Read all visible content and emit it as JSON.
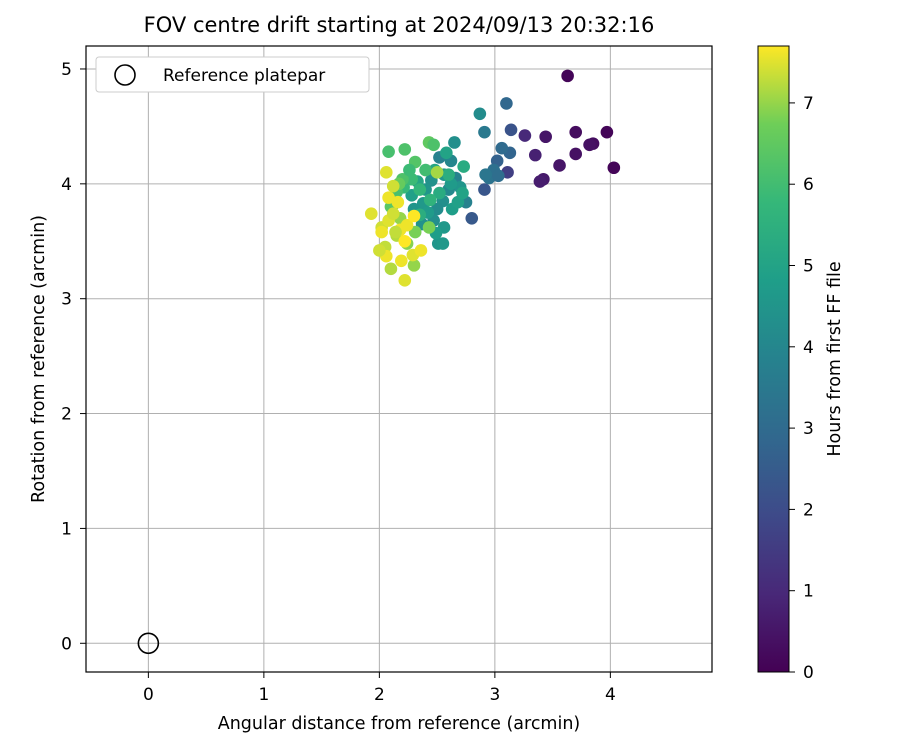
{
  "chart_data": {
    "type": "scatter",
    "title": "FOV centre drift starting at 2024/09/13 20:32:16",
    "xlabel": "Angular distance from reference (arcmin)",
    "ylabel": "Rotation from reference (arcmin)",
    "xlim": [
      -0.54,
      4.88
    ],
    "ylim": [
      -0.25,
      5.2
    ],
    "xticks": [
      0,
      1,
      2,
      3,
      4
    ],
    "yticks": [
      0,
      1,
      2,
      3,
      4,
      5
    ],
    "grid": true,
    "legend": {
      "placement": "upper-left",
      "entries": [
        {
          "label": "Reference platepar",
          "marker": "open-circle"
        }
      ]
    },
    "reference_point": {
      "x": 0,
      "y": 0
    },
    "colorbar": {
      "label": "Hours from first FF file",
      "colormap": "viridis",
      "range": [
        0,
        7.7
      ],
      "ticks": [
        0,
        1,
        2,
        3,
        4,
        5,
        6,
        7
      ]
    },
    "points": [
      {
        "x": 3.63,
        "y": 4.94,
        "c": 0.1
      },
      {
        "x": 3.97,
        "y": 4.45,
        "c": 0.1
      },
      {
        "x": 4.03,
        "y": 4.14,
        "c": 0.1
      },
      {
        "x": 3.7,
        "y": 4.45,
        "c": 0.3
      },
      {
        "x": 3.85,
        "y": 4.35,
        "c": 0.3
      },
      {
        "x": 3.82,
        "y": 4.34,
        "c": 0.4
      },
      {
        "x": 3.7,
        "y": 4.26,
        "c": 0.4
      },
      {
        "x": 3.56,
        "y": 4.16,
        "c": 0.5
      },
      {
        "x": 3.44,
        "y": 4.41,
        "c": 0.5
      },
      {
        "x": 3.42,
        "y": 4.04,
        "c": 0.6
      },
      {
        "x": 3.39,
        "y": 4.02,
        "c": 0.7
      },
      {
        "x": 3.35,
        "y": 4.25,
        "c": 0.8
      },
      {
        "x": 3.26,
        "y": 4.42,
        "c": 1.0
      },
      {
        "x": 3.11,
        "y": 4.1,
        "c": 1.6
      },
      {
        "x": 3.14,
        "y": 4.47,
        "c": 2.2
      },
      {
        "x": 2.91,
        "y": 3.95,
        "c": 2.3
      },
      {
        "x": 2.8,
        "y": 3.7,
        "c": 2.4
      },
      {
        "x": 3.1,
        "y": 4.7,
        "c": 2.9
      },
      {
        "x": 3.02,
        "y": 4.2,
        "c": 2.7
      },
      {
        "x": 3.13,
        "y": 4.27,
        "c": 2.8
      },
      {
        "x": 3.06,
        "y": 4.31,
        "c": 3.0
      },
      {
        "x": 2.99,
        "y": 4.12,
        "c": 3.2
      },
      {
        "x": 2.91,
        "y": 4.45,
        "c": 3.5
      },
      {
        "x": 2.95,
        "y": 4.05,
        "c": 3.3
      },
      {
        "x": 3.03,
        "y": 4.07,
        "c": 3.1
      },
      {
        "x": 2.92,
        "y": 4.08,
        "c": 3.4
      },
      {
        "x": 2.75,
        "y": 3.84,
        "c": 3.8
      },
      {
        "x": 2.87,
        "y": 4.61,
        "c": 4.2
      },
      {
        "x": 2.65,
        "y": 4.36,
        "c": 4.3
      },
      {
        "x": 2.52,
        "y": 4.23,
        "c": 3.8
      },
      {
        "x": 2.62,
        "y": 4.2,
        "c": 4.0
      },
      {
        "x": 2.66,
        "y": 4.05,
        "c": 3.9
      },
      {
        "x": 2.7,
        "y": 3.97,
        "c": 4.5
      },
      {
        "x": 2.6,
        "y": 3.95,
        "c": 4.1
      },
      {
        "x": 2.55,
        "y": 3.85,
        "c": 4.3
      },
      {
        "x": 2.5,
        "y": 3.78,
        "c": 4.2
      },
      {
        "x": 2.47,
        "y": 3.68,
        "c": 4.3
      },
      {
        "x": 2.56,
        "y": 3.62,
        "c": 4.6
      },
      {
        "x": 2.51,
        "y": 3.48,
        "c": 4.5
      },
      {
        "x": 2.55,
        "y": 3.48,
        "c": 4.6
      },
      {
        "x": 2.49,
        "y": 3.57,
        "c": 4.8
      },
      {
        "x": 2.63,
        "y": 3.78,
        "c": 4.8
      },
      {
        "x": 2.68,
        "y": 3.84,
        "c": 4.9
      },
      {
        "x": 2.72,
        "y": 3.92,
        "c": 5.0
      },
      {
        "x": 2.62,
        "y": 4.0,
        "c": 4.7
      },
      {
        "x": 2.56,
        "y": 4.08,
        "c": 4.6
      },
      {
        "x": 2.45,
        "y": 4.03,
        "c": 4.4
      },
      {
        "x": 2.4,
        "y": 3.95,
        "c": 4.5
      },
      {
        "x": 2.38,
        "y": 3.83,
        "c": 4.6
      },
      {
        "x": 2.42,
        "y": 3.75,
        "c": 4.7
      },
      {
        "x": 2.37,
        "y": 3.65,
        "c": 4.4
      },
      {
        "x": 2.3,
        "y": 3.78,
        "c": 4.5
      },
      {
        "x": 2.28,
        "y": 3.9,
        "c": 4.9
      },
      {
        "x": 2.33,
        "y": 4.02,
        "c": 5.1
      },
      {
        "x": 2.48,
        "y": 4.12,
        "c": 5.1
      },
      {
        "x": 2.58,
        "y": 4.27,
        "c": 5.0
      },
      {
        "x": 2.73,
        "y": 4.15,
        "c": 5.3
      },
      {
        "x": 2.6,
        "y": 4.08,
        "c": 5.4
      },
      {
        "x": 2.52,
        "y": 3.92,
        "c": 5.3
      },
      {
        "x": 2.44,
        "y": 3.86,
        "c": 5.6
      },
      {
        "x": 2.35,
        "y": 3.95,
        "c": 5.7
      },
      {
        "x": 2.21,
        "y": 3.97,
        "c": 5.8
      },
      {
        "x": 2.28,
        "y": 4.04,
        "c": 5.9
      },
      {
        "x": 2.2,
        "y": 4.04,
        "c": 6.2
      },
      {
        "x": 2.15,
        "y": 3.93,
        "c": 6.1
      },
      {
        "x": 2.12,
        "y": 3.82,
        "c": 6.0
      },
      {
        "x": 2.08,
        "y": 4.28,
        "c": 6.1
      },
      {
        "x": 2.22,
        "y": 4.3,
        "c": 6.2
      },
      {
        "x": 2.31,
        "y": 4.19,
        "c": 6.3
      },
      {
        "x": 2.43,
        "y": 4.36,
        "c": 6.5
      },
      {
        "x": 2.47,
        "y": 4.34,
        "c": 6.2
      },
      {
        "x": 2.4,
        "y": 4.12,
        "c": 6.0
      },
      {
        "x": 2.26,
        "y": 4.12,
        "c": 5.9
      },
      {
        "x": 2.17,
        "y": 4.0,
        "c": 6.6
      },
      {
        "x": 2.1,
        "y": 3.8,
        "c": 6.4
      },
      {
        "x": 2.35,
        "y": 3.73,
        "c": 5.4
      },
      {
        "x": 2.43,
        "y": 3.62,
        "c": 6.8
      },
      {
        "x": 2.5,
        "y": 4.1,
        "c": 7.1
      },
      {
        "x": 2.3,
        "y": 3.29,
        "c": 7.0
      },
      {
        "x": 2.31,
        "y": 3.58,
        "c": 6.8
      },
      {
        "x": 2.24,
        "y": 3.48,
        "c": 6.9
      },
      {
        "x": 2.18,
        "y": 3.7,
        "c": 7.0
      },
      {
        "x": 2.15,
        "y": 3.55,
        "c": 7.2
      },
      {
        "x": 2.1,
        "y": 3.26,
        "c": 7.2
      },
      {
        "x": 2.05,
        "y": 3.45,
        "c": 7.3
      },
      {
        "x": 2.02,
        "y": 3.62,
        "c": 7.4
      },
      {
        "x": 1.93,
        "y": 3.74,
        "c": 7.5
      },
      {
        "x": 2.02,
        "y": 3.58,
        "c": 7.6
      },
      {
        "x": 2.08,
        "y": 3.68,
        "c": 7.5
      },
      {
        "x": 2.12,
        "y": 3.74,
        "c": 7.4
      },
      {
        "x": 2.16,
        "y": 3.84,
        "c": 7.6
      },
      {
        "x": 2.08,
        "y": 3.88,
        "c": 7.6
      },
      {
        "x": 2.18,
        "y": 3.6,
        "c": 7.6
      },
      {
        "x": 2.22,
        "y": 3.5,
        "c": 7.7
      },
      {
        "x": 2.19,
        "y": 3.33,
        "c": 7.6
      },
      {
        "x": 2.22,
        "y": 3.16,
        "c": 7.5
      },
      {
        "x": 2.29,
        "y": 3.38,
        "c": 7.5
      },
      {
        "x": 2.06,
        "y": 3.37,
        "c": 7.6
      },
      {
        "x": 2.0,
        "y": 3.42,
        "c": 7.4
      },
      {
        "x": 2.14,
        "y": 3.58,
        "c": 7.3
      },
      {
        "x": 2.24,
        "y": 3.64,
        "c": 7.6
      },
      {
        "x": 2.3,
        "y": 3.72,
        "c": 7.7
      },
      {
        "x": 2.06,
        "y": 4.1,
        "c": 7.5
      },
      {
        "x": 2.12,
        "y": 3.98,
        "c": 7.4
      },
      {
        "x": 2.36,
        "y": 3.42,
        "c": 7.6
      }
    ]
  }
}
